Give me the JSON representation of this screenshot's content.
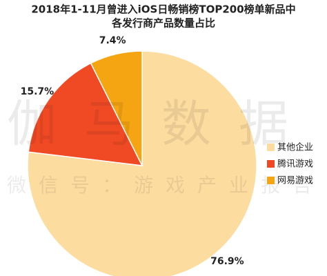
{
  "chart_data": {
    "type": "pie",
    "title": [
      "2018年1-11月曾进入iOS日畅销榜TOP200榜单新品中",
      "各发行商产品数量占比"
    ],
    "watermark": [
      "伽马数据",
      "微信号：游戏产业报告"
    ],
    "categories": [
      "其他企业",
      "腾讯游戏",
      "网易游戏"
    ],
    "values": [
      76.9,
      15.7,
      7.4
    ],
    "value_labels": [
      "76.9%",
      "15.7%",
      "7.4%"
    ],
    "colors": [
      "#fddca0",
      "#f04a24",
      "#f5a512"
    ],
    "legend": "right"
  }
}
